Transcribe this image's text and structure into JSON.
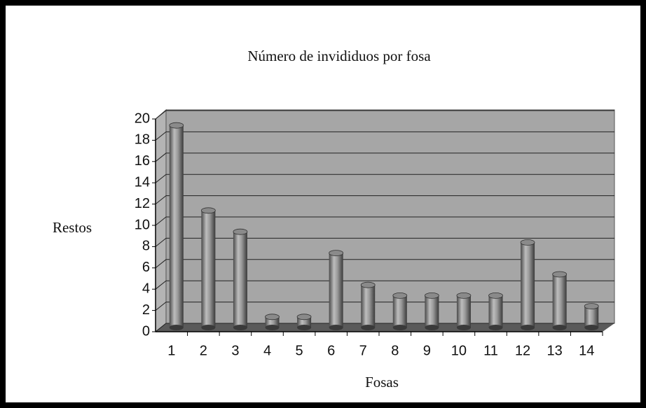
{
  "chart_data": {
    "type": "bar",
    "title": "Número de invididuos por fosa",
    "x_label": "Fosas",
    "y_label": "Restos",
    "categories": [
      "1",
      "2",
      "3",
      "4",
      "5",
      "6",
      "7",
      "8",
      "9",
      "10",
      "11",
      "12",
      "13",
      "14"
    ],
    "values": [
      19,
      11,
      9,
      1,
      1,
      7,
      4,
      3,
      3,
      3,
      3,
      8,
      5,
      2
    ],
    "color": "#8a8a8a",
    "ylim": [
      0,
      20
    ],
    "yticks": [
      0,
      2,
      4,
      6,
      8,
      10,
      12,
      14,
      16,
      18,
      20
    ],
    "grid": true
  }
}
